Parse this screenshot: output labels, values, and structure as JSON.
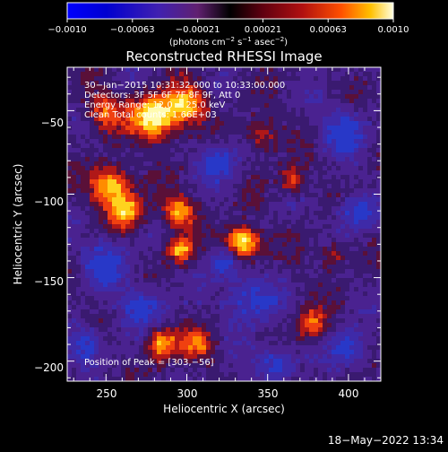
{
  "colorbar": {
    "ticks": [
      "−0.0010",
      "−0.00063",
      "−0.00021",
      "0.00021",
      "0.00063",
      "0.0010"
    ],
    "units_prefix": "(photons cm",
    "units_exp1": "−2",
    "units_mid1": " s",
    "units_exp2": "−1",
    "units_mid2": " asec",
    "units_exp3": "−2",
    "units_suffix": ")"
  },
  "plot": {
    "title": "Reconstructed RHESSI Image",
    "xlabel": "Heliocentric X (arcsec)",
    "ylabel": "Heliocentric Y (arcsec)",
    "x_ticks": [
      "250",
      "300",
      "350",
      "400"
    ],
    "y_ticks": [
      "−50",
      "−100",
      "−150",
      "−200"
    ],
    "xlim": [
      226,
      420
    ],
    "ylim": [
      -212,
      -24
    ]
  },
  "annotations": {
    "time_range": "30−Jan−2015 10:31:32.000 to 10:33:00.000",
    "detectors": "Detectors: 3F 5F 6F 7F 8F 9F, Att 0",
    "energy": "Energy Range: 12.0 − 25.0 keV",
    "clean": "Clean      Total counts: 1.66E+03",
    "peak": "Position of Peak = [303,−56]"
  },
  "footer": {
    "date": "18−May−2022 13:34"
  }
}
